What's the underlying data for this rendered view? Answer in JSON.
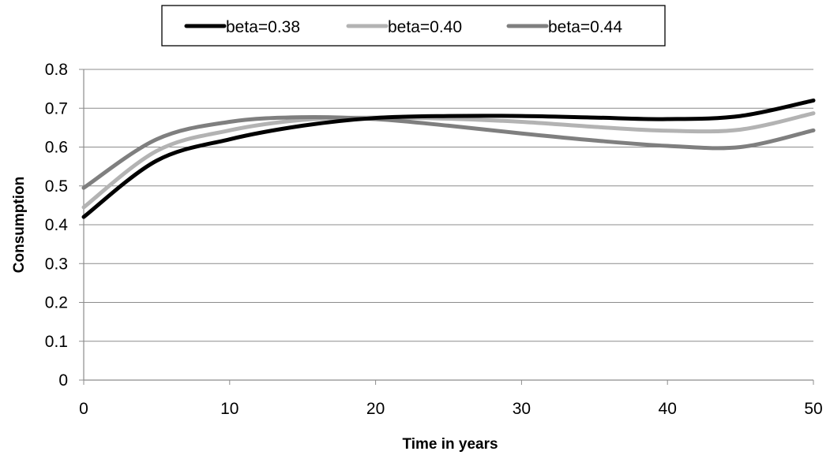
{
  "chart_data": {
    "type": "line",
    "xlabel": "Time in years",
    "ylabel": "Consumption",
    "xlim": [
      0,
      50
    ],
    "ylim": [
      0,
      0.8
    ],
    "x_ticks": [
      "0",
      "10",
      "20",
      "30",
      "40",
      "50"
    ],
    "y_ticks": [
      "0",
      "0.1",
      "0.2",
      "0.3",
      "0.4",
      "0.5",
      "0.6",
      "0.7",
      "0.8"
    ],
    "grid": "horizontal",
    "legend_position": "top",
    "series": [
      {
        "name": "beta=0.38",
        "color": "#000000",
        "x": [
          0,
          5,
          10,
          15,
          20,
          25,
          30,
          35,
          40,
          45,
          50
        ],
        "y": [
          0.42,
          0.565,
          0.62,
          0.655,
          0.675,
          0.68,
          0.68,
          0.676,
          0.672,
          0.68,
          0.72
        ]
      },
      {
        "name": "beta=0.40",
        "color": "#b3b3b3",
        "x": [
          0,
          5,
          10,
          15,
          20,
          25,
          30,
          35,
          40,
          45,
          50
        ],
        "y": [
          0.445,
          0.59,
          0.643,
          0.67,
          0.676,
          0.673,
          0.665,
          0.652,
          0.642,
          0.645,
          0.687
        ]
      },
      {
        "name": "beta=0.44",
        "color": "#7f7f7f",
        "x": [
          0,
          5,
          10,
          15,
          20,
          25,
          30,
          35,
          40,
          45,
          50
        ],
        "y": [
          0.495,
          0.62,
          0.665,
          0.677,
          0.672,
          0.655,
          0.635,
          0.617,
          0.603,
          0.6,
          0.643
        ]
      }
    ]
  }
}
